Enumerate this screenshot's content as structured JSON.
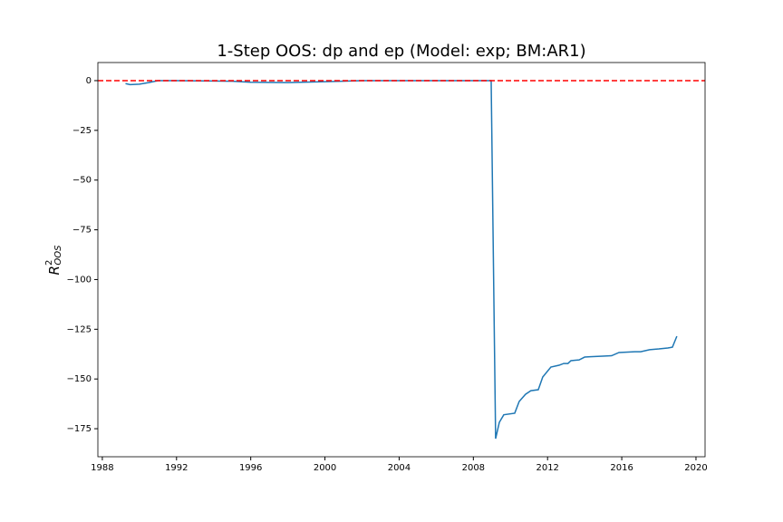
{
  "chart_data": {
    "type": "line",
    "title": "1-Step OOS: dp and ep (Model: exp; BM:AR1)",
    "ylabel": {
      "base": "R",
      "sup": "2",
      "sub": "OOS"
    },
    "x": [
      1989.25,
      1989.5,
      1990.0,
      1990.5,
      1991.0,
      1992.0,
      1994.0,
      1995.0,
      1996.0,
      1998.0,
      2000.0,
      2002.0,
      2004.0,
      2006.0,
      2008.0,
      2008.96,
      2009.2,
      2009.4,
      2009.64,
      2010.23,
      2010.47,
      2010.81,
      2011.1,
      2011.5,
      2011.74,
      2012.18,
      2012.62,
      2012.87,
      2013.1,
      2013.26,
      2013.7,
      2014.0,
      2014.3,
      2014.97,
      2015.45,
      2015.85,
      2016.7,
      2017.02,
      2017.5,
      2018.0,
      2018.48,
      2018.73,
      2018.97
    ],
    "series": [
      {
        "color": "#1f77b4",
        "values": [
          -1.5,
          -2,
          -1.8,
          -1,
          0,
          0,
          -0.2,
          -0.3,
          -0.8,
          -1,
          -0.5,
          0,
          0,
          0,
          0,
          0,
          -180,
          -171.8,
          -168,
          -167.2,
          -161.3,
          -157.7,
          -155.9,
          -155.4,
          -149,
          -144,
          -143.1,
          -142.2,
          -142.2,
          -140.8,
          -140.4,
          -139,
          -138.8,
          -138.5,
          -138.3,
          -136.7,
          -136.3,
          -136.3,
          -135.3,
          -134.9,
          -134.4,
          -134,
          -128.5
        ]
      }
    ],
    "xlim": [
      1987.76,
      2020.49
    ],
    "xticks": [
      1988,
      1992,
      1996,
      2000,
      2004,
      2008,
      2012,
      2016,
      2020
    ],
    "ylim": [
      -189.1,
      9.1
    ],
    "yticks": [
      {
        "value": -175,
        "label": "−175"
      },
      {
        "value": -150,
        "label": "−150"
      },
      {
        "value": -125,
        "label": "−125"
      },
      {
        "value": -100,
        "label": "−100"
      },
      {
        "value": -75,
        "label": "−75"
      },
      {
        "value": -50,
        "label": "−50"
      },
      {
        "value": -25,
        "label": "−25"
      },
      0
    ],
    "hlines": [
      {
        "value": 0,
        "color": "#ff0000",
        "style": "dashed"
      }
    ]
  }
}
